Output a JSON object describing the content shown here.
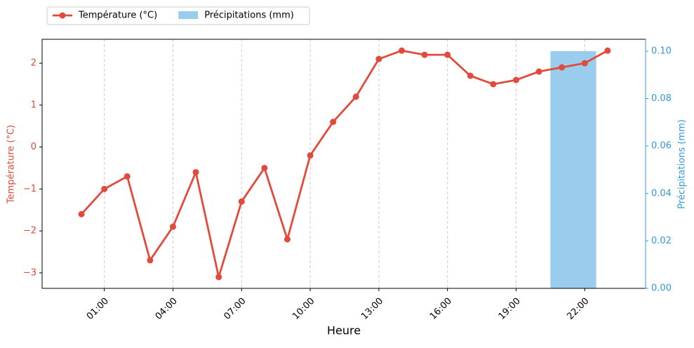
{
  "chart_data": {
    "type": "line-bar",
    "x_label": "Heure",
    "y_label": "Température (°C)",
    "y2_label": "Précipitations (mm)",
    "x": [
      0,
      1,
      2,
      3,
      4,
      5,
      6,
      7,
      8,
      9,
      10,
      11,
      12,
      13,
      14,
      15,
      16,
      17,
      18,
      19,
      20,
      21,
      22,
      23
    ],
    "xlim": [
      -1.72,
      24.66
    ],
    "xticks": [
      {
        "value": 1,
        "label": "01:00"
      },
      {
        "value": 4,
        "label": "04:00"
      },
      {
        "value": 7,
        "label": "07:00"
      },
      {
        "value": 10,
        "label": "10:00"
      },
      {
        "value": 13,
        "label": "13:00"
      },
      {
        "value": 16,
        "label": "16:00"
      },
      {
        "value": 19,
        "label": "19:00"
      },
      {
        "value": 22,
        "label": "22:00"
      }
    ],
    "ylim": [
      -3.37,
      2.57
    ],
    "yticks": [
      {
        "value": -3,
        "label": "−3"
      },
      {
        "value": -2,
        "label": "−2"
      },
      {
        "value": -1,
        "label": "−1"
      },
      0,
      1,
      2
    ],
    "y2lim": [
      0,
      0.105
    ],
    "y2ticks": [
      {
        "value": 0,
        "label": "0.00"
      },
      {
        "value": 0.02,
        "label": "0.02"
      },
      {
        "value": 0.04,
        "label": "0.04"
      },
      {
        "value": 0.06,
        "label": "0.06"
      },
      {
        "value": 0.08,
        "label": "0.08"
      },
      {
        "value": 0.1,
        "label": "0.10"
      }
    ],
    "grid": "x",
    "legend": "top-left-outside",
    "series": [
      {
        "name": "Température (°C)",
        "color": "#e24a3b",
        "kind": "line",
        "axis": "y",
        "values": [
          -1.6,
          -1.0,
          -0.7,
          -2.7,
          -1.9,
          -0.6,
          -3.1,
          -1.3,
          -0.5,
          -2.2,
          -0.2,
          0.6,
          1.2,
          2.1,
          2.3,
          2.2,
          2.2,
          1.7,
          1.5,
          1.6,
          1.8,
          1.9,
          2.0,
          2.3
        ]
      },
      {
        "name": "Précipitations (mm)",
        "color": "#99cced",
        "kind": "bar",
        "axis": "y2",
        "values": [
          0,
          0,
          0,
          0,
          0,
          0,
          0,
          0,
          0,
          0,
          0,
          0,
          0,
          0,
          0,
          0,
          0,
          0,
          0,
          0,
          0,
          0.1,
          0.1,
          0
        ]
      }
    ]
  }
}
